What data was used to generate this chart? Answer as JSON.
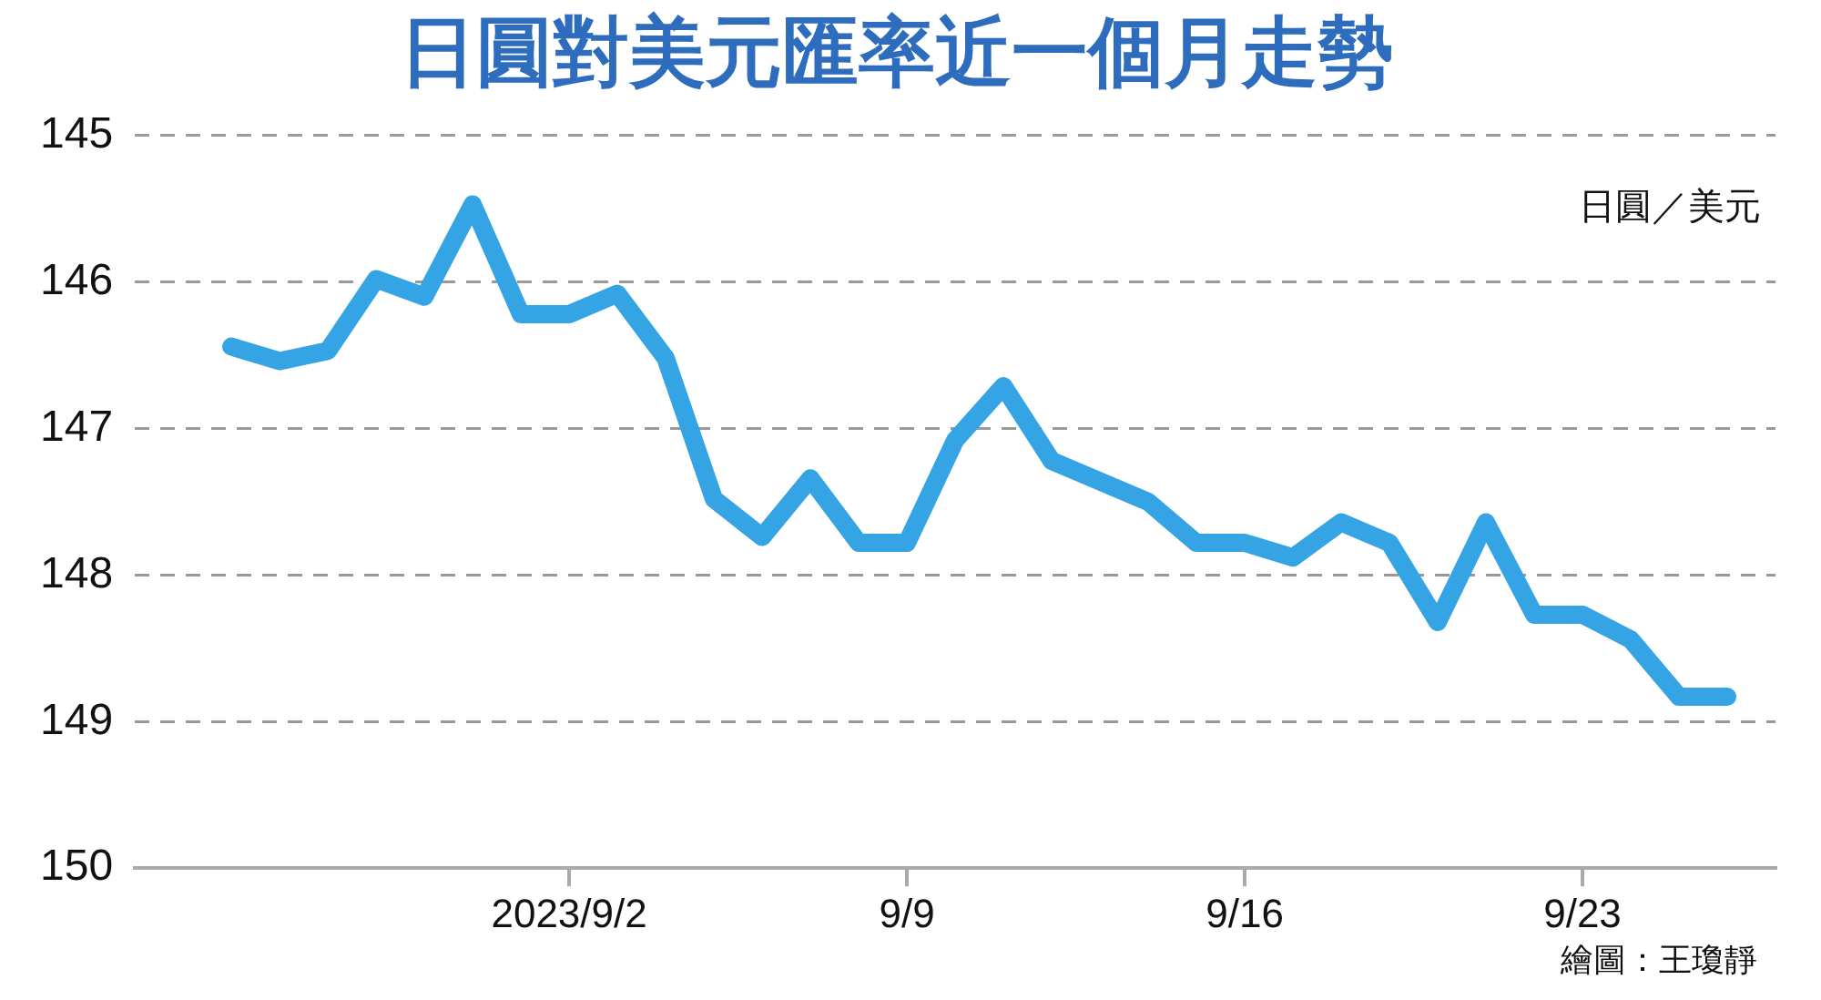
{
  "chart_data": {
    "type": "line",
    "title": "日圓對美元匯率近一個月走勢",
    "ylabel": "日圓／美元",
    "x": [
      "2023-08-26",
      "2023-08-27",
      "2023-08-28",
      "2023-08-29",
      "2023-08-30",
      "2023-08-31",
      "2023-09-01",
      "2023-09-02",
      "2023-09-03",
      "2023-09-04",
      "2023-09-05",
      "2023-09-06",
      "2023-09-07",
      "2023-09-08",
      "2023-09-09",
      "2023-09-10",
      "2023-09-11",
      "2023-09-12",
      "2023-09-13",
      "2023-09-14",
      "2023-09-15",
      "2023-09-16",
      "2023-09-17",
      "2023-09-18",
      "2023-09-19",
      "2023-09-20",
      "2023-09-21",
      "2023-09-22",
      "2023-09-23",
      "2023-09-24",
      "2023-09-25",
      "2023-09-26"
    ],
    "values": [
      146.44,
      146.54,
      146.47,
      145.98,
      146.1,
      145.47,
      146.22,
      146.22,
      146.08,
      146.52,
      147.48,
      147.74,
      147.34,
      147.78,
      147.78,
      147.08,
      146.71,
      147.22,
      147.36,
      147.5,
      147.78,
      147.78,
      147.88,
      147.64,
      147.78,
      148.32,
      147.64,
      148.27,
      148.27,
      148.44,
      148.83,
      148.83
    ],
    "color": "#35a4e4",
    "xlim": [
      "2023-08-24",
      "2023-09-27"
    ],
    "xticks": [
      {
        "value": "2023-09-02",
        "label": "2023/9/2"
      },
      {
        "value": "2023-09-09",
        "label": "9/9"
      },
      {
        "value": "2023-09-16",
        "label": "9/16"
      },
      {
        "value": "2023-09-23",
        "label": "9/23"
      }
    ],
    "ylim": [
      150,
      145
    ],
    "yticks": [
      145,
      146,
      147,
      148,
      149,
      150
    ],
    "grid": "y",
    "annotations": [
      "繪圖：王瓊靜"
    ]
  }
}
